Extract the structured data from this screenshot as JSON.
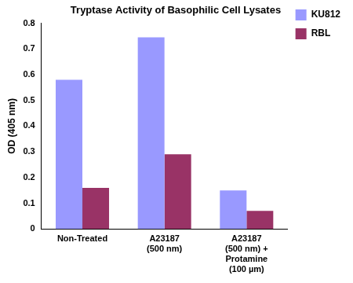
{
  "chart_data": {
    "type": "bar",
    "title": "Tryptase Activity of Basophilic Cell Lysates",
    "y_label": "OD (405 nm)",
    "categories": [
      "Non-Treated",
      "A23187\n(500 nm)",
      "A23187\n(500 nm) +\nProtamine\n(100 µm)"
    ],
    "series": [
      {
        "name": "KU812",
        "color": "#9999ff",
        "values": [
          0.58,
          0.745,
          0.15
        ]
      },
      {
        "name": "RBL",
        "color": "#993366",
        "values": [
          0.16,
          0.29,
          0.07
        ]
      }
    ],
    "ylim": [
      0,
      0.8
    ],
    "yticks": [
      0,
      0.1,
      0.2,
      0.3,
      0.4,
      0.5,
      0.6,
      0.7,
      0.8
    ],
    "grid": false,
    "legend": "upper right"
  }
}
